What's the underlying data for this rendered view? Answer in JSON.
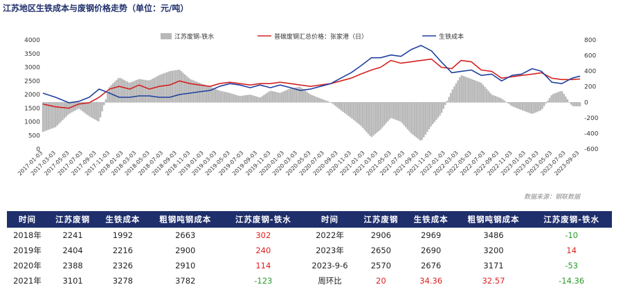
{
  "title": "江苏地区生铁成本与废钢价格走势（单位：元/吨）",
  "source": "数据来源：钢联数据",
  "colors": {
    "header": "#1f2f6b",
    "scrap": "#d42020",
    "iron": "#1f3f9f",
    "spread": "#b8b8b8",
    "up": "#e02020",
    "down": "#2a9a2a"
  },
  "chart_data": {
    "type": "line",
    "x_start": "2017-01-03",
    "x_end": "2023-09-06",
    "left_ylim": [
      0,
      4000
    ],
    "left_ticks": [
      "0",
      "500",
      "1000",
      "1500",
      "2000",
      "2500",
      "3000",
      "3500",
      "4000"
    ],
    "right_ylim": [
      -600,
      800
    ],
    "right_ticks": [
      "-600",
      "-400",
      "-200",
      "0",
      "200",
      "400",
      "600",
      "800"
    ],
    "x_ticks": [
      "2017-01-03",
      "2017-03-03",
      "2017-05-03",
      "2017-07-03",
      "2017-09-03",
      "2017-11-03",
      "2018-01-03",
      "2018-03-03",
      "2018-05-03",
      "2018-07-03",
      "2018-09-03",
      "2018-11-03",
      "2019-01-03",
      "2019-03-03",
      "2019-05-03",
      "2019-07-03",
      "2019-09-03",
      "2019-11-03",
      "2020-01-03",
      "2020-03-03",
      "2020-05-03",
      "2020-07-03",
      "2020-09-03",
      "2020-11-03",
      "2021-01-03",
      "2021-03-03",
      "2021-05-03",
      "2021-07-03",
      "2021-09-03",
      "2021-11-03",
      "2022-01-03",
      "2022-03-03",
      "2022-05-03",
      "2022-07-03",
      "2022-09-03",
      "2022-11-03",
      "2023-01-03",
      "2023-03-03",
      "2023-05-03",
      "2023-07-03",
      "2023-09-03"
    ],
    "legend_position": "top",
    "series": [
      {
        "name": "江苏废钢-铁水",
        "axis": "right",
        "kind": "bar",
        "x": [
          "2017-01-03",
          "2017-03-01",
          "2017-05-01",
          "2017-06-15",
          "2017-08-01",
          "2017-09-15",
          "2017-11-01",
          "2017-12-15",
          "2018-02-01",
          "2018-03-15",
          "2018-05-01",
          "2018-06-15",
          "2018-08-01",
          "2018-09-15",
          "2018-11-01",
          "2018-12-15",
          "2019-02-01",
          "2019-03-15",
          "2019-05-01",
          "2019-06-15",
          "2019-08-01",
          "2019-09-15",
          "2019-11-01",
          "2019-12-15",
          "2020-02-01",
          "2020-03-15",
          "2020-05-01",
          "2020-06-15",
          "2020-08-01",
          "2020-09-15",
          "2020-11-01",
          "2020-12-15",
          "2021-02-01",
          "2021-03-15",
          "2021-05-01",
          "2021-06-15",
          "2021-08-01",
          "2021-09-15",
          "2021-11-01",
          "2021-12-15",
          "2022-02-01",
          "2022-03-15",
          "2022-05-01",
          "2022-06-15",
          "2022-08-01",
          "2022-09-15",
          "2022-11-01",
          "2022-12-15",
          "2023-02-01",
          "2023-03-15",
          "2023-05-01",
          "2023-06-15",
          "2023-08-01",
          "2023-09-06"
        ],
        "values": [
          -380,
          -320,
          -150,
          -80,
          -180,
          -250,
          200,
          320,
          250,
          300,
          280,
          350,
          400,
          420,
          300,
          250,
          200,
          150,
          120,
          80,
          100,
          60,
          150,
          120,
          180,
          200,
          100,
          50,
          0,
          -100,
          -200,
          -300,
          -450,
          -350,
          -200,
          -250,
          -400,
          -500,
          -300,
          -150,
          150,
          350,
          300,
          250,
          100,
          50,
          -50,
          -100,
          -150,
          -100,
          100,
          150,
          -50,
          -53
        ]
      },
      {
        "name": "普碳废钢汇总价格：张家港（日）",
        "axis": "left",
        "kind": "line",
        "x": [
          "2017-01-03",
          "2017-03-01",
          "2017-05-01",
          "2017-06-15",
          "2017-08-01",
          "2017-09-15",
          "2017-11-01",
          "2017-12-15",
          "2018-02-01",
          "2018-03-15",
          "2018-05-01",
          "2018-06-15",
          "2018-08-01",
          "2018-09-15",
          "2018-11-01",
          "2018-12-15",
          "2019-02-01",
          "2019-03-15",
          "2019-05-01",
          "2019-06-15",
          "2019-08-01",
          "2019-09-15",
          "2019-11-01",
          "2019-12-15",
          "2020-02-01",
          "2020-03-15",
          "2020-05-01",
          "2020-06-15",
          "2020-08-01",
          "2020-09-15",
          "2020-11-01",
          "2020-12-15",
          "2021-02-01",
          "2021-03-15",
          "2021-05-01",
          "2021-06-15",
          "2021-08-01",
          "2021-09-15",
          "2021-11-01",
          "2021-12-15",
          "2022-02-01",
          "2022-03-15",
          "2022-05-01",
          "2022-06-15",
          "2022-08-01",
          "2022-09-15",
          "2022-11-01",
          "2022-12-15",
          "2023-02-01",
          "2023-03-15",
          "2023-05-01",
          "2023-06-15",
          "2023-08-01",
          "2023-09-06"
        ],
        "values": [
          1650,
          1550,
          1500,
          1650,
          1700,
          1900,
          2200,
          2300,
          2200,
          2350,
          2200,
          2300,
          2350,
          2500,
          2400,
          2350,
          2300,
          2400,
          2450,
          2400,
          2350,
          2400,
          2400,
          2450,
          2400,
          2350,
          2300,
          2350,
          2400,
          2500,
          2600,
          2750,
          2900,
          3000,
          3250,
          3150,
          3200,
          3250,
          3300,
          3000,
          2950,
          3250,
          3200,
          2900,
          2850,
          2600,
          2650,
          2700,
          2750,
          2800,
          2600,
          2550,
          2550,
          2570
        ]
      },
      {
        "name": "生铁成本",
        "axis": "left",
        "kind": "line",
        "x": [
          "2017-01-03",
          "2017-03-01",
          "2017-05-01",
          "2017-06-15",
          "2017-08-01",
          "2017-09-15",
          "2017-11-01",
          "2017-12-15",
          "2018-02-01",
          "2018-03-15",
          "2018-05-01",
          "2018-06-15",
          "2018-08-01",
          "2018-09-15",
          "2018-11-01",
          "2018-12-15",
          "2019-02-01",
          "2019-03-15",
          "2019-05-01",
          "2019-06-15",
          "2019-08-01",
          "2019-09-15",
          "2019-11-01",
          "2019-12-15",
          "2020-02-01",
          "2020-03-15",
          "2020-05-01",
          "2020-06-15",
          "2020-08-01",
          "2020-09-15",
          "2020-11-01",
          "2020-12-15",
          "2021-02-01",
          "2021-03-15",
          "2021-05-01",
          "2021-06-15",
          "2021-08-01",
          "2021-09-15",
          "2021-11-01",
          "2021-12-15",
          "2022-02-01",
          "2022-03-15",
          "2022-05-01",
          "2022-06-15",
          "2022-08-01",
          "2022-09-15",
          "2022-11-01",
          "2022-12-15",
          "2023-02-01",
          "2023-03-15",
          "2023-05-01",
          "2023-06-15",
          "2023-08-01",
          "2023-09-06"
        ],
        "values": [
          2050,
          1900,
          1700,
          1750,
          1900,
          2200,
          2050,
          1900,
          1900,
          1950,
          1950,
          1900,
          1900,
          2000,
          2050,
          2100,
          2150,
          2300,
          2400,
          2350,
          2250,
          2350,
          2250,
          2350,
          2250,
          2150,
          2200,
          2300,
          2400,
          2600,
          2800,
          3050,
          3350,
          3350,
          3450,
          3400,
          3650,
          3800,
          3600,
          3200,
          2800,
          2850,
          2900,
          2700,
          2750,
          2500,
          2700,
          2750,
          2950,
          2850,
          2450,
          2400,
          2600,
          2676
        ]
      }
    ]
  },
  "table": {
    "headers": [
      "时间",
      "江苏废钢",
      "生铁成本",
      "粗钢吨钢成本",
      "江苏废钢-铁水",
      "时间",
      "江苏废钢",
      "生铁成本",
      "粗钢吨钢成本",
      "江苏废钢-铁水"
    ],
    "rows": [
      {
        "cells": [
          "2018年",
          "2241",
          "1992",
          "2663",
          "302",
          "2022年",
          "2906",
          "2969",
          "3486",
          "-10"
        ],
        "colors": [
          "",
          "",
          "",
          "",
          "up",
          "",
          "",
          "",
          "",
          "down"
        ]
      },
      {
        "cells": [
          "2019年",
          "2404",
          "2216",
          "2900",
          "240",
          "2023年",
          "2650",
          "2690",
          "3200",
          "14"
        ],
        "colors": [
          "",
          "",
          "",
          "",
          "up",
          "",
          "",
          "",
          "",
          "up"
        ]
      },
      {
        "cells": [
          "2020年",
          "2388",
          "2326",
          "2910",
          "114",
          "2023-9-6",
          "2570",
          "2676",
          "3171",
          "-53"
        ],
        "colors": [
          "",
          "",
          "",
          "",
          "up",
          "",
          "",
          "",
          "",
          "down"
        ]
      },
      {
        "cells": [
          "2021年",
          "3101",
          "3278",
          "3782",
          "-123",
          "周环比",
          "20",
          "34.36",
          "32.57",
          "-14.36"
        ],
        "colors": [
          "",
          "",
          "",
          "",
          "down",
          "",
          "up",
          "up",
          "up",
          "down"
        ]
      }
    ]
  }
}
